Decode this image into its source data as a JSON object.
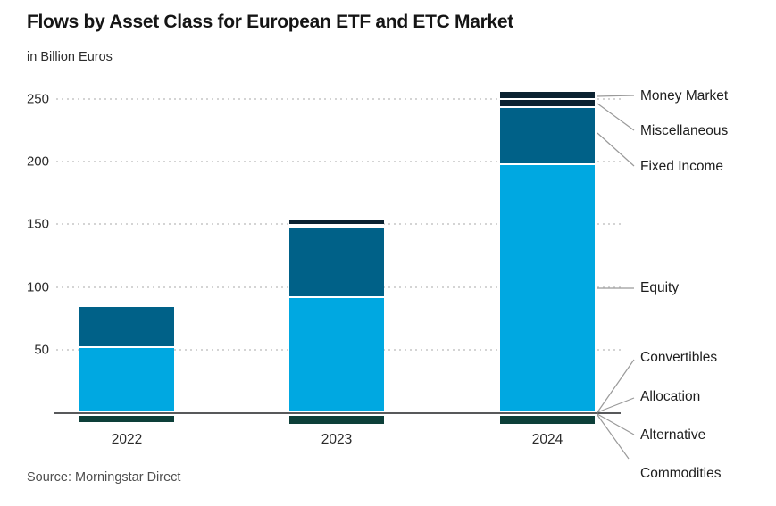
{
  "header": {
    "title": "Flows by Asset Class for European ETF and ETC Market",
    "subtitle": "in Billion Euros"
  },
  "source": {
    "text": "Source: Morningstar Direct"
  },
  "chart_data": {
    "type": "bar",
    "variant": "stacked",
    "title": "Flows by Asset Class for European ETF and ETC Market",
    "subtitle": "in Billion Euros",
    "unit": "billion EUR",
    "categories": [
      "2022",
      "2023",
      "2024"
    ],
    "series": [
      {
        "name": "Equity",
        "color": "#00a8e1",
        "values": [
          51,
          91,
          197
        ]
      },
      {
        "name": "Fixed Income",
        "color": "#006188",
        "values": [
          33,
          57,
          46
        ]
      },
      {
        "name": "Miscellaneous",
        "color": "#0b2231",
        "values": [
          0,
          1,
          6
        ]
      },
      {
        "name": "Money Market",
        "color": "#0b2231",
        "values": [
          0,
          5,
          7
        ]
      },
      {
        "name": "Convertibles / Allocation / Alternative / Commodities (net outflows)",
        "color": "#0d3f39",
        "values": [
          -8,
          -9,
          -9
        ]
      }
    ],
    "totals_positive": [
      84,
      154,
      256
    ],
    "ylim": [
      -15,
      260
    ],
    "yticks": [
      50,
      100,
      150,
      200,
      250
    ],
    "grid": "dotted horizontal gridlines",
    "legend_position": "right-side callout labels with leader lines",
    "callouts": [
      "Money Market",
      "Miscellaneous",
      "Fixed Income",
      "Equity",
      "Convertibles",
      "Allocation",
      "Alternative",
      "Commodities"
    ]
  }
}
